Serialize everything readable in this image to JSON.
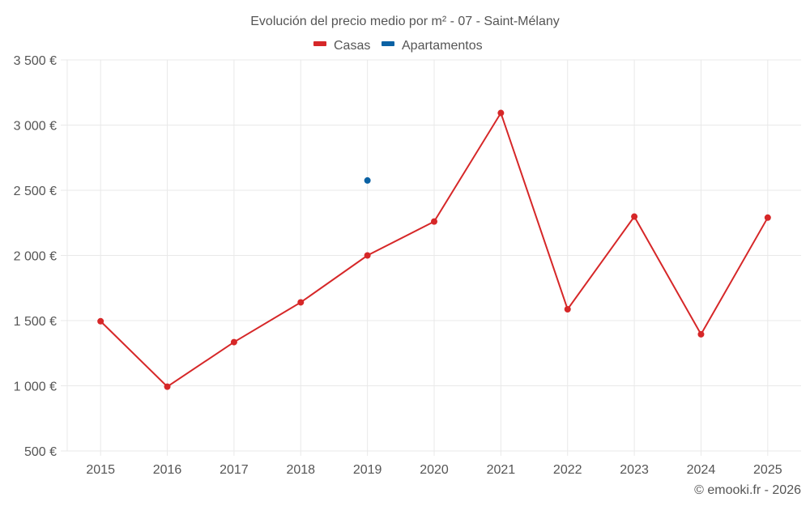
{
  "chart_data": {
    "type": "line",
    "title": "Evolución del precio medio por m² - 07 - Saint-Mélany",
    "xlabel": "",
    "ylabel": "",
    "categories": [
      "2015",
      "2016",
      "2017",
      "2018",
      "2019",
      "2020",
      "2021",
      "2022",
      "2023",
      "2024",
      "2025"
    ],
    "series": [
      {
        "name": "Casas",
        "color": "#d62728",
        "values": [
          1495,
          993,
          1335,
          1640,
          2000,
          2260,
          3093,
          1587,
          2298,
          1395,
          2290
        ]
      },
      {
        "name": "Apartamentos",
        "color": "#0b62a4",
        "values": [
          null,
          null,
          null,
          null,
          2575,
          null,
          null,
          null,
          null,
          null,
          null
        ]
      }
    ],
    "ylim": [
      500,
      3500
    ],
    "yticks": [
      500,
      1000,
      1500,
      2000,
      2500,
      3000,
      3500
    ],
    "ytick_labels": [
      "500 €",
      "1 000 €",
      "1 500 €",
      "2 000 €",
      "2 500 €",
      "3 000 €",
      "3 500 €"
    ],
    "grid": true,
    "legend_position": "top-center"
  },
  "credit": "© emooki.fr - 2026"
}
